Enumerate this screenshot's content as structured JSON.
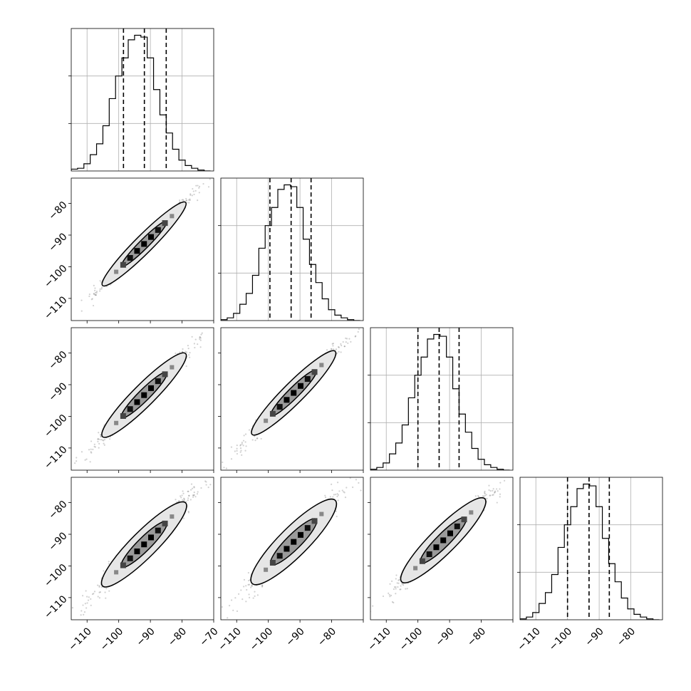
{
  "chart_data": {
    "type": "corner",
    "grid": true,
    "num_parameters": 4,
    "quantiles": [
      0.16,
      0.5,
      0.84
    ],
    "diagonal_histograms": [
      {
        "parameter_index": 0,
        "xlim": [
          -115,
          -70
        ],
        "quantile_values": [
          -98.5,
          -91.9,
          -85.0
        ],
        "bin_edges": [
          -115,
          -113,
          -111,
          -109,
          -107,
          -105,
          -103,
          -101,
          -99,
          -97,
          -95,
          -93,
          -91,
          -89,
          -87,
          -85,
          -83,
          -81,
          -79,
          -77,
          -75,
          -73,
          -71
        ],
        "counts": [
          2,
          3,
          8,
          18,
          30,
          50,
          80,
          105,
          125,
          145,
          150,
          148,
          125,
          90,
          62,
          42,
          24,
          12,
          6,
          3,
          1,
          0
        ]
      },
      {
        "parameter_index": 1,
        "xlim": [
          -115,
          -70
        ],
        "quantile_values": [
          -99.5,
          -92.8,
          -86.5
        ],
        "bin_edges": [
          -115,
          -113,
          -111,
          -109,
          -107,
          -105,
          -103,
          -101,
          -99,
          -97,
          -95,
          -93,
          -91,
          -89,
          -87,
          -85,
          -83,
          -81,
          -79,
          -77,
          -75,
          -73,
          -71
        ],
        "counts": [
          1,
          3,
          8,
          18,
          30,
          50,
          80,
          105,
          125,
          145,
          150,
          148,
          125,
          90,
          62,
          42,
          24,
          12,
          6,
          3,
          1,
          0
        ]
      },
      {
        "parameter_index": 2,
        "xlim": [
          -115,
          -70
        ],
        "quantile_values": [
          -100.0,
          -93.3,
          -87.0
        ],
        "bin_edges": [
          -115,
          -113,
          -111,
          -109,
          -107,
          -105,
          -103,
          -101,
          -99,
          -97,
          -95,
          -93,
          -91,
          -89,
          -87,
          -85,
          -83,
          -81,
          -79,
          -77,
          -75,
          -73,
          -71
        ],
        "counts": [
          1,
          3,
          8,
          18,
          30,
          50,
          80,
          105,
          125,
          145,
          150,
          148,
          125,
          90,
          62,
          42,
          24,
          12,
          6,
          3,
          1,
          0
        ]
      },
      {
        "parameter_index": 3,
        "xlim": [
          -115,
          -70
        ],
        "quantile_values": [
          -100.0,
          -93.2,
          -86.8
        ],
        "bin_edges": [
          -115,
          -113,
          -111,
          -109,
          -107,
          -105,
          -103,
          -101,
          -99,
          -97,
          -95,
          -93,
          -91,
          -89,
          -87,
          -85,
          -83,
          -81,
          -79,
          -77,
          -75,
          -73,
          -71
        ],
        "counts": [
          1,
          3,
          8,
          18,
          30,
          50,
          80,
          105,
          125,
          145,
          150,
          148,
          125,
          90,
          62,
          42,
          24,
          12,
          6,
          3,
          1,
          0
        ]
      }
    ],
    "panels_2d": [
      {
        "x_param": 0,
        "y_param": 1,
        "xlim": [
          -115,
          -70
        ],
        "ylim": [
          -117,
          -72
        ],
        "slope": 1.0,
        "intercept": -0.8,
        "width": 1.2
      },
      {
        "x_param": 0,
        "y_param": 2,
        "xlim": [
          -115,
          -70
        ],
        "ylim": [
          -117,
          -72
        ],
        "slope": 1.0,
        "intercept": -1.3,
        "width": 1.6
      },
      {
        "x_param": 1,
        "y_param": 2,
        "xlim": [
          -115,
          -70
        ],
        "ylim": [
          -117,
          -72
        ],
        "slope": 1.0,
        "intercept": -0.6,
        "width": 1.5
      },
      {
        "x_param": 0,
        "y_param": 3,
        "xlim": [
          -115,
          -70
        ],
        "ylim": [
          -117,
          -72
        ],
        "slope": 1.0,
        "intercept": -1.2,
        "width": 2.0
      },
      {
        "x_param": 1,
        "y_param": 3,
        "xlim": [
          -115,
          -70
        ],
        "ylim": [
          -117,
          -72
        ],
        "slope": 1.0,
        "intercept": -0.4,
        "width": 2.3
      },
      {
        "x_param": 2,
        "y_param": 3,
        "xlim": [
          -115,
          -70
        ],
        "ylim": [
          -117,
          -72
        ],
        "slope": 1.0,
        "intercept": 0.1,
        "width": 2.0
      }
    ],
    "x_tick_labels": [
      {
        "column": 0,
        "values": [
          -110,
          -100,
          -90,
          -80,
          -70
        ],
        "labels": [
          "−110",
          "−100",
          "−90",
          "−80",
          "−70"
        ]
      },
      {
        "column": 1,
        "values": [
          -110,
          -100,
          -90,
          -80
        ],
        "labels": [
          "−110",
          "−100",
          "−90",
          "−80"
        ]
      },
      {
        "column": 2,
        "values": [
          -110,
          -100,
          -90,
          -80
        ],
        "labels": [
          "−110",
          "−100",
          "−90",
          "−80"
        ]
      },
      {
        "column": 3,
        "values": [
          -110,
          -100,
          -90,
          -80
        ],
        "labels": [
          "−110",
          "−100",
          "−90",
          "−80"
        ]
      }
    ],
    "y_tick_labels": {
      "values": [
        -80,
        -90,
        -100,
        -110
      ],
      "labels": [
        "−80",
        "−90",
        "−100",
        "−110"
      ]
    }
  }
}
